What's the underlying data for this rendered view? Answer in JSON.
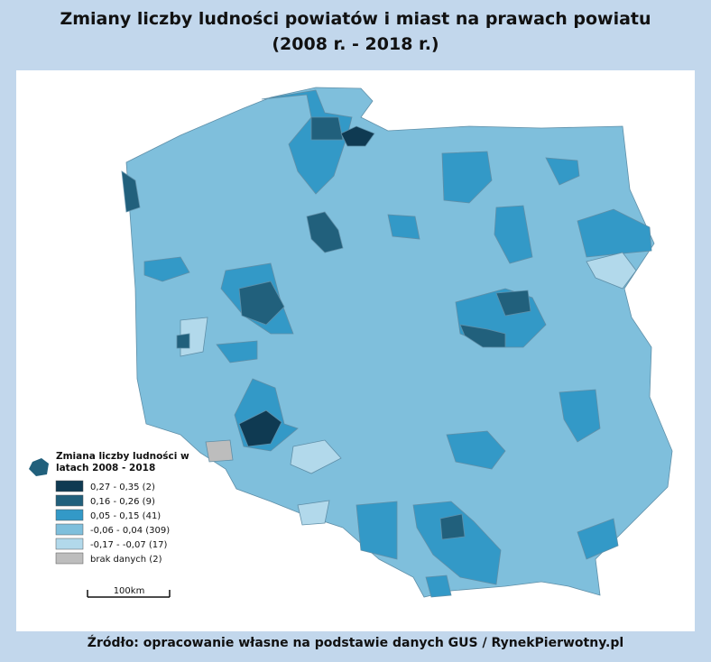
{
  "header": {
    "title": [
      "Zmiany liczby ludności powiatów i miast na prawach powiatu",
      "(2008 r. - 2018 r.)"
    ]
  },
  "legend": {
    "title": [
      "Zmiana liczby ludności w",
      "latach 2008 - 2018"
    ],
    "items": [
      {
        "label": "0,27 - 0,35 (2)",
        "color": "#0f3a52"
      },
      {
        "label": "0,16 - 0,26 (9)",
        "color": "#21607c"
      },
      {
        "label": "0,05 - 0,15 (41)",
        "color": "#3399c7"
      },
      {
        "label": "-0,06 - 0,04 (309)",
        "color": "#7fbfdc"
      },
      {
        "label": "-0,17 - -0,07 (17)",
        "color": "#b2d9eb"
      },
      {
        "label": "brak danych (2)",
        "color": "#bdbdbd"
      }
    ]
  },
  "scale_bar": {
    "label": "100km"
  },
  "source": "Źródło: opracowanie własne na podstawie danych GUS / RynekPierwotny.pl"
}
